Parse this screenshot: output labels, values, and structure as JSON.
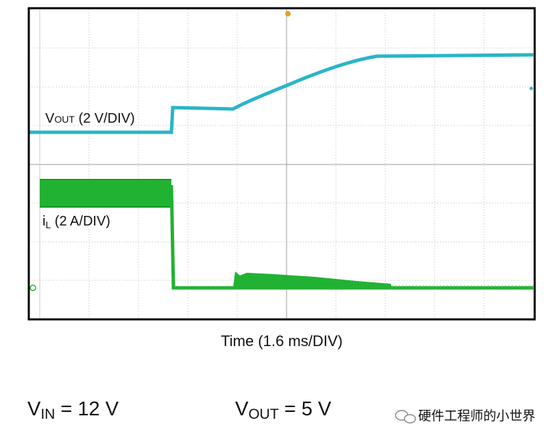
{
  "trace_labels": {
    "vout": {
      "main": "V",
      "sub": "OUT",
      "rest": " (2 V/DIV)"
    },
    "il": {
      "main": "i",
      "sub": "L",
      "rest": " (2 A/DIV)"
    }
  },
  "time_label": "Time (1.6 ms/DIV)",
  "conditions": {
    "vin": {
      "main": "V",
      "sub": "IN",
      "rest": " = 12 V"
    },
    "vout": {
      "main": "V",
      "sub": "OUT",
      "rest": " = 5 V"
    }
  },
  "watermark": "硬件工程师的小世界"
}
